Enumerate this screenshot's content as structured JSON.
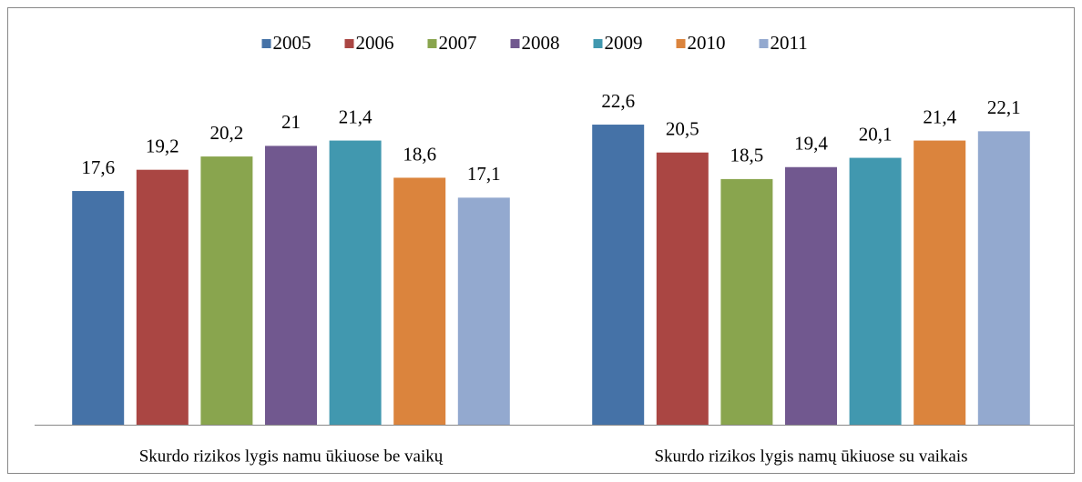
{
  "chart_data": {
    "type": "bar",
    "categories": [
      "Skurdo rizikos lygis namu ūkiuose be vaikų",
      "Skurdo rizikos lygis namų ūkiuose su vaikais"
    ],
    "series": [
      {
        "name": "2005",
        "color": "#4572a7",
        "values": [
          17.6,
          22.6
        ],
        "value_labels": [
          "17,6",
          "22,6"
        ]
      },
      {
        "name": "2006",
        "color": "#aa4643",
        "values": [
          19.2,
          20.5
        ],
        "value_labels": [
          "19,2",
          "20,5"
        ]
      },
      {
        "name": "2007",
        "color": "#89a54e",
        "values": [
          20.2,
          18.5
        ],
        "value_labels": [
          "20,2",
          "18,5"
        ]
      },
      {
        "name": "2008",
        "color": "#71588f",
        "values": [
          21,
          19.4
        ],
        "value_labels": [
          "21",
          "19,4"
        ]
      },
      {
        "name": "2009",
        "color": "#4198af",
        "values": [
          21.4,
          20.1
        ],
        "value_labels": [
          "21,4",
          "20,1"
        ]
      },
      {
        "name": "2010",
        "color": "#db843d",
        "values": [
          18.6,
          21.4
        ],
        "value_labels": [
          "18,6",
          "21,4"
        ]
      },
      {
        "name": "2011",
        "color": "#93a9cf",
        "values": [
          17.1,
          22.1
        ],
        "value_labels": [
          "17,1",
          "22,1"
        ]
      }
    ],
    "ylim": [
      0,
      25
    ],
    "legend": "top"
  }
}
